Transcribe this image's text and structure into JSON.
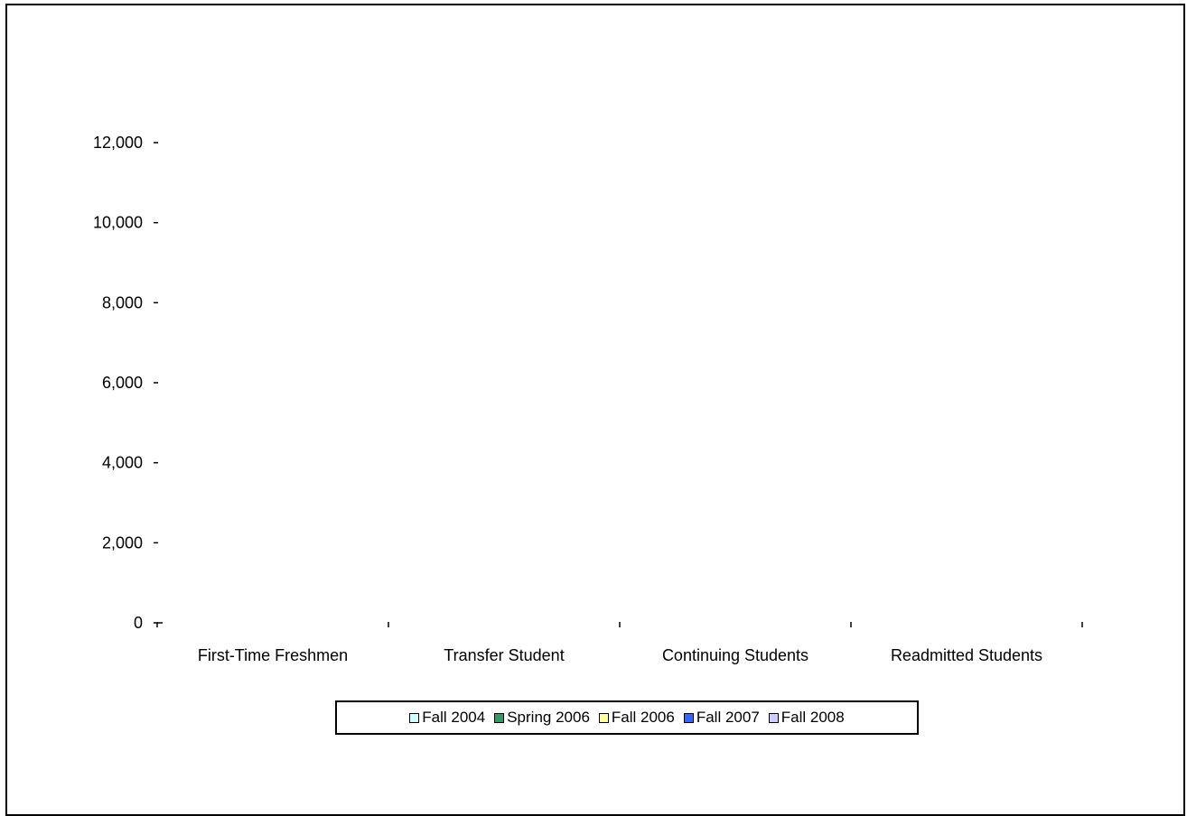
{
  "chart_data": {
    "type": "bar",
    "categories": [
      "First-Time Freshmen",
      "Transfer Student",
      "Continuing Students",
      "Readmitted Students"
    ],
    "series": [
      {
        "name": "Fall 2004",
        "values": [
          0,
          0,
          0,
          0
        ],
        "color": "#ccffff"
      },
      {
        "name": "Spring 2006",
        "values": [
          0,
          0,
          0,
          0
        ],
        "color": "#339966"
      },
      {
        "name": "Fall 2006",
        "values": [
          0,
          0,
          0,
          0
        ],
        "color": "#ffff99"
      },
      {
        "name": "Fall 2007",
        "values": [
          0,
          0,
          0,
          0
        ],
        "color": "#3366ff"
      },
      {
        "name": "Fall 2008",
        "values": [
          0,
          0,
          0,
          0
        ],
        "color": "#ccccff"
      }
    ],
    "y_ticks": [
      "0",
      "2,000",
      "4,000",
      "6,000",
      "8,000",
      "10,000",
      "12,000"
    ],
    "ylim": [
      0,
      12000
    ],
    "title": "",
    "xlabel": "",
    "ylabel": "",
    "grid": false,
    "legend_position": "bottom"
  }
}
